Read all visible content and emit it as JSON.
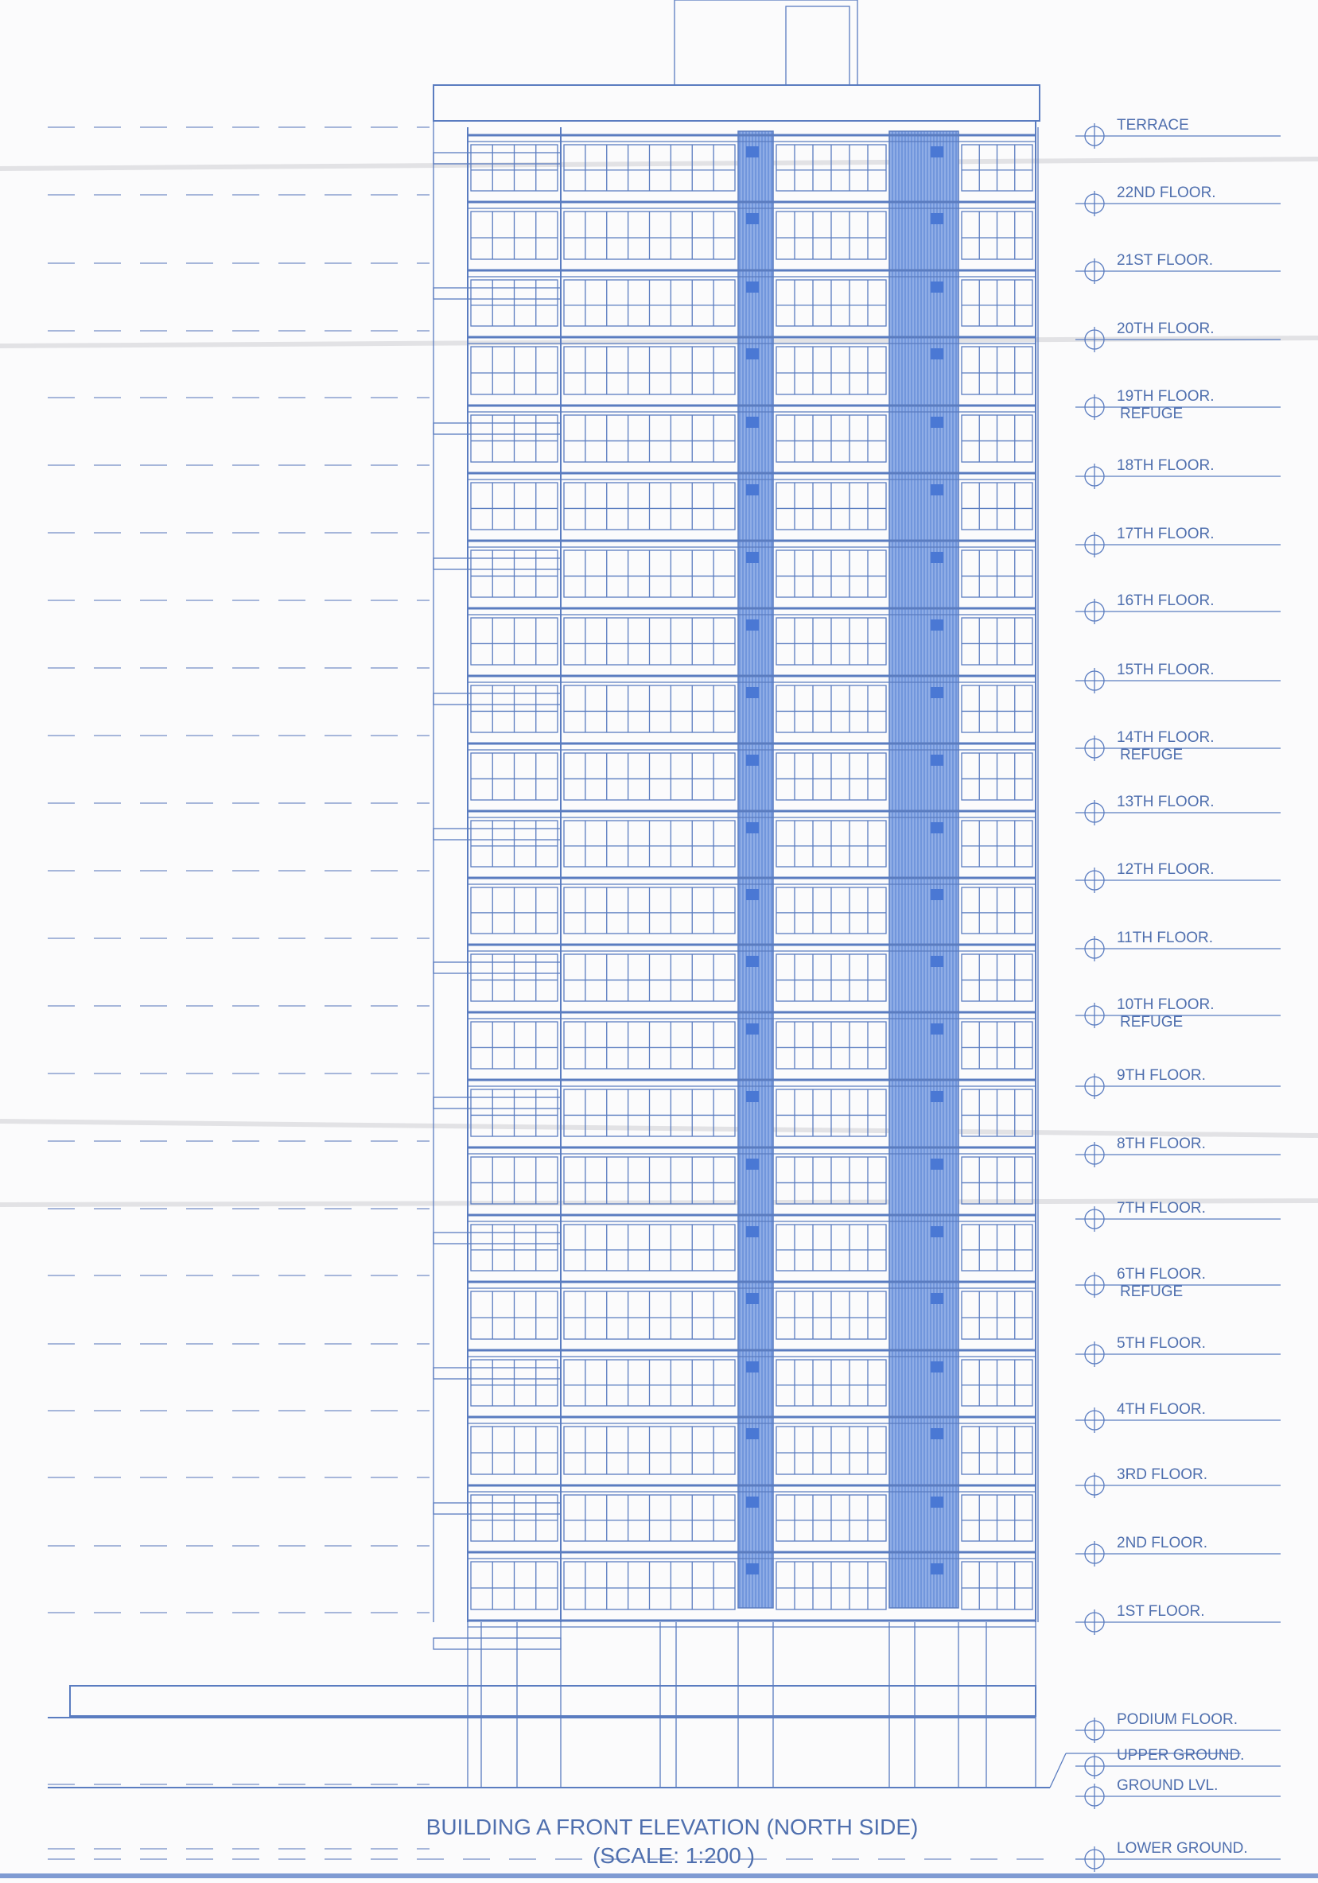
{
  "drawing": {
    "title": "BUILDING A  FRONT ELEVATION (NORTH SIDE)",
    "scale": "(SCALE: 1:200 )",
    "colors": {
      "line": "#5a7cc0",
      "fill_dark": "#4a78d4",
      "fill_light": "#9db8ea",
      "text": "#4f6fae"
    },
    "levels": [
      {
        "name": "terrace",
        "label": "TERRACE",
        "sub": ""
      },
      {
        "name": "22nd-floor",
        "label": "22ND FLOOR.",
        "sub": ""
      },
      {
        "name": "21st-floor",
        "label": "21ST FLOOR.",
        "sub": ""
      },
      {
        "name": "20th-floor",
        "label": "20TH FLOOR.",
        "sub": ""
      },
      {
        "name": "19th-floor",
        "label": "19TH FLOOR.",
        "sub": "REFUGE"
      },
      {
        "name": "18th-floor",
        "label": "18TH FLOOR.",
        "sub": ""
      },
      {
        "name": "17th-floor",
        "label": "17TH FLOOR.",
        "sub": ""
      },
      {
        "name": "16th-floor",
        "label": "16TH FLOOR.",
        "sub": ""
      },
      {
        "name": "15th-floor",
        "label": "15TH FLOOR.",
        "sub": ""
      },
      {
        "name": "14th-floor",
        "label": "14TH FLOOR.",
        "sub": "REFUGE"
      },
      {
        "name": "13th-floor",
        "label": "13TH FLOOR.",
        "sub": ""
      },
      {
        "name": "12th-floor",
        "label": "12TH FLOOR.",
        "sub": ""
      },
      {
        "name": "11th-floor",
        "label": "11TH FLOOR.",
        "sub": ""
      },
      {
        "name": "10th-floor",
        "label": "10TH FLOOR.",
        "sub": "REFUGE"
      },
      {
        "name": "9th-floor",
        "label": "9TH FLOOR.",
        "sub": ""
      },
      {
        "name": "8th-floor",
        "label": "8TH FLOOR.",
        "sub": ""
      },
      {
        "name": "7th-floor",
        "label": "7TH FLOOR.",
        "sub": ""
      },
      {
        "name": "6th-floor",
        "label": "6TH FLOOR.",
        "sub": "REFUGE"
      },
      {
        "name": "5th-floor",
        "label": "5TH FLOOR.",
        "sub": ""
      },
      {
        "name": "4th-floor",
        "label": "4TH FLOOR.",
        "sub": ""
      },
      {
        "name": "3rd-floor",
        "label": "3RD FLOOR.",
        "sub": ""
      },
      {
        "name": "2nd-floor",
        "label": "2ND FLOOR.",
        "sub": ""
      },
      {
        "name": "1st-floor",
        "label": "1ST FLOOR.",
        "sub": ""
      },
      {
        "name": "podium-floor",
        "label": "PODIUM FLOOR.",
        "sub": ""
      },
      {
        "name": "upper-ground",
        "label": "UPPER GROUND.",
        "sub": ""
      },
      {
        "name": "ground-lvl",
        "label": "GROUND LVL.",
        "sub": ""
      },
      {
        "name": "lower-ground",
        "label": "LOWER GROUND.",
        "sub": ""
      }
    ]
  }
}
